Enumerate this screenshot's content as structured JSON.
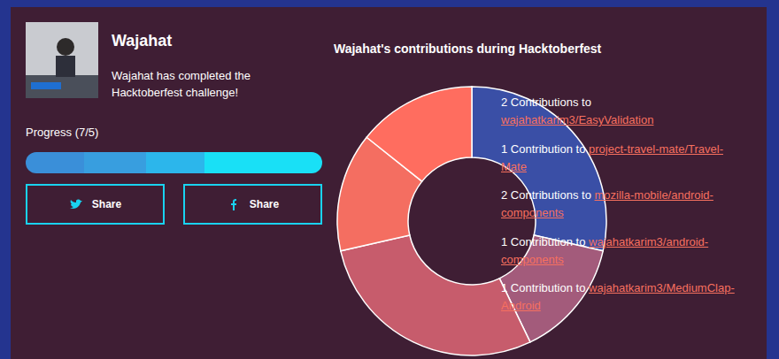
{
  "profile": {
    "name": "Wajahat",
    "message": "Wajahat has completed the Hacktoberfest challenge!",
    "progress": "Progress (7/5)",
    "share_buttons": [
      "Share",
      "Share"
    ]
  },
  "chart_data": {
    "type": "pie",
    "title": "Wajahat's contributions during Hacktoberfest",
    "categories": [
      "wajahatkarim3/EasyValidation",
      "project-travel-mate/Travel-Mate",
      "mozilla-mobile/android-components",
      "wajahatkarim3/android-components",
      "wajahatkarim3/MediumClap-Android"
    ],
    "values": [
      2,
      1,
      2,
      1,
      1
    ],
    "value_labels": [
      "2 Contributions to",
      "1 Contribution to",
      "2 Contributions to",
      "1 Contribution to",
      "1 Contribution to"
    ],
    "colors": [
      "#3a4fa6",
      "#a35b7b",
      "#c75c6c",
      "#f46e61",
      "#ff6d5f"
    ],
    "data_labels": true
  }
}
